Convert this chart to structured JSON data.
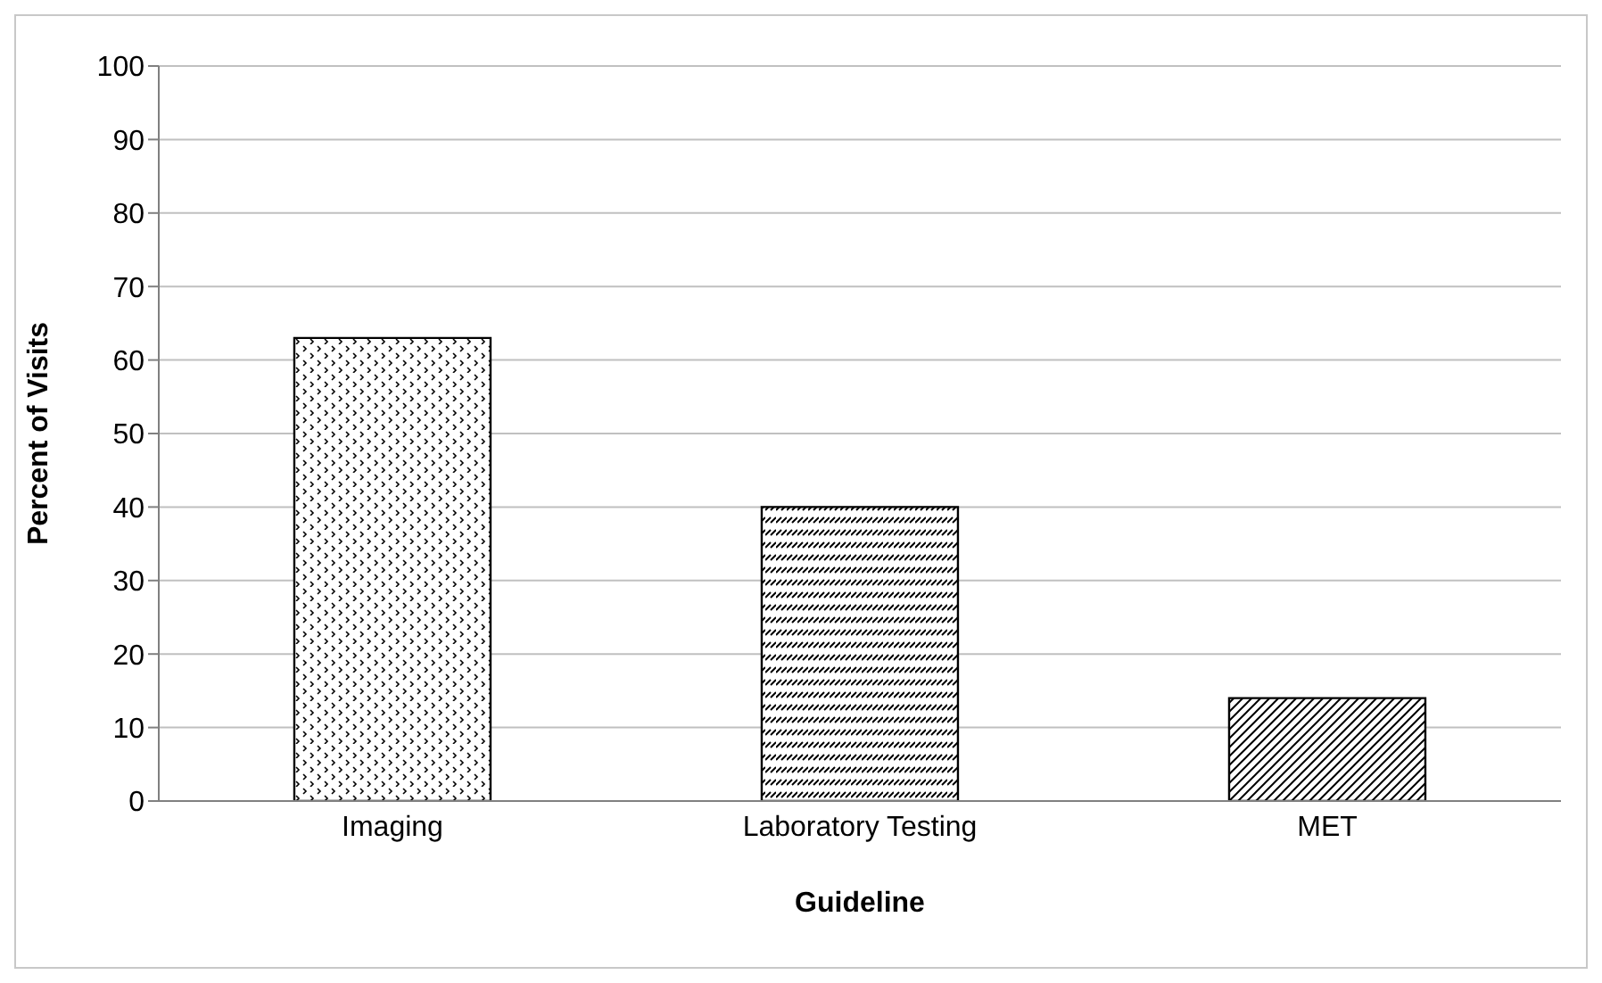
{
  "chart_data": {
    "type": "bar",
    "xlabel": "Guideline",
    "ylabel": "Percent of Visits",
    "categories": [
      "Imaging",
      "Laboratory Testing",
      "MET"
    ],
    "values": [
      63,
      40,
      14
    ],
    "color": "#000000",
    "ylim": [
      0,
      100
    ],
    "yticks": [
      0,
      10,
      20,
      30,
      40,
      50,
      60,
      70,
      80,
      90,
      100
    ],
    "grid": "y"
  }
}
